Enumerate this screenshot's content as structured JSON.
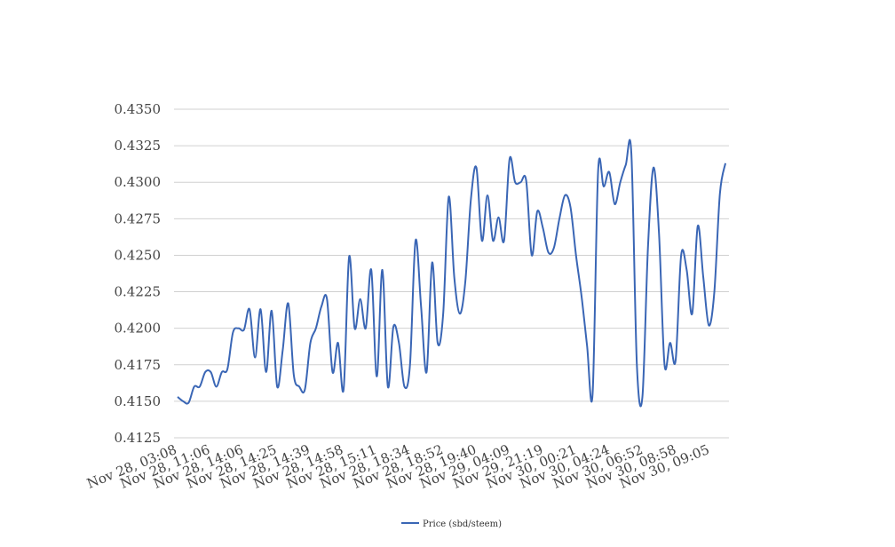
{
  "chart_data": {
    "type": "line",
    "title": "",
    "xlabel": "",
    "ylabel": "",
    "ylim": [
      0.4125,
      0.435
    ],
    "yticks": [
      "0.4125",
      "0.4150",
      "0.4175",
      "0.4200",
      "0.4225",
      "0.4250",
      "0.4275",
      "0.4300",
      "0.4325",
      "0.4350"
    ],
    "xticks": [
      "Nov 28, 03:08",
      "Nov 28, 11:06",
      "Nov 28, 14:06",
      "Nov 28, 14:25",
      "Nov 28, 14:39",
      "Nov 28, 14:58",
      "Nov 28, 15:11",
      "Nov 28, 18:34",
      "Nov 28, 18:52",
      "Nov 28, 19:40",
      "Nov 29, 04:09",
      "Nov 29, 21:19",
      "Nov 30, 00:21",
      "Nov 30, 04:24",
      "Nov 30, 06:52",
      "Nov 30, 08:58",
      "Nov 30, 09:05"
    ],
    "grid": true,
    "legend_position": "bottom",
    "series": [
      {
        "name": "Price (sbd/steem)",
        "color": "#3a66b5",
        "values": [
          0.4153,
          0.415,
          0.4149,
          0.416,
          0.416,
          0.417,
          0.417,
          0.416,
          0.417,
          0.4172,
          0.4197,
          0.42,
          0.4199,
          0.4213,
          0.418,
          0.4213,
          0.417,
          0.4212,
          0.416,
          0.4185,
          0.4217,
          0.4168,
          0.416,
          0.4158,
          0.419,
          0.42,
          0.4215,
          0.422,
          0.417,
          0.419,
          0.4158,
          0.4249,
          0.42,
          0.422,
          0.42,
          0.424,
          0.4167,
          0.424,
          0.416,
          0.4201,
          0.419,
          0.416,
          0.4175,
          0.426,
          0.4215,
          0.417,
          0.4245,
          0.419,
          0.421,
          0.429,
          0.4235,
          0.421,
          0.4232,
          0.4288,
          0.431,
          0.426,
          0.4291,
          0.426,
          0.4276,
          0.426,
          0.4316,
          0.43,
          0.43,
          0.4301,
          0.425,
          0.428,
          0.4269,
          0.4252,
          0.4255,
          0.4275,
          0.4291,
          0.4283,
          0.425,
          0.4222,
          0.4188,
          0.4155,
          0.4308,
          0.4297,
          0.4307,
          0.4285,
          0.43,
          0.4312,
          0.432,
          0.4175,
          0.4153,
          0.4255,
          0.431,
          0.4265,
          0.4175,
          0.419,
          0.4178,
          0.425,
          0.424,
          0.421,
          0.427,
          0.4235,
          0.4202,
          0.4225,
          0.4292,
          0.4313
        ]
      }
    ]
  }
}
